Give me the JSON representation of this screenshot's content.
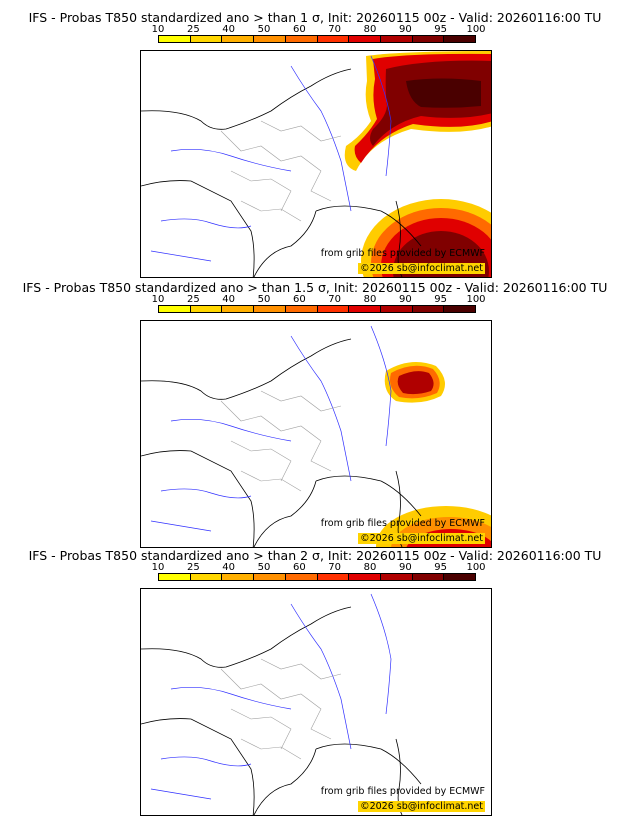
{
  "scale": {
    "labels": [
      "10",
      "25",
      "40",
      "50",
      "60",
      "70",
      "80",
      "90",
      "95",
      "100"
    ],
    "colors": [
      "#ffff00",
      "#ffd700",
      "#ffb000",
      "#ff9000",
      "#ff6a00",
      "#ff3000",
      "#e00000",
      "#b00000",
      "#800000",
      "#4a0000"
    ]
  },
  "credit": {
    "source": "from grib files provided by ECMWF",
    "copyright": "©2026 sb@infoclimat.net"
  },
  "panels": [
    {
      "title": "IFS - Probas T850  standardized ano > than 1 σ, Init: 20260115 00z - Valid: 20260116:00 TU"
    },
    {
      "title": "IFS - Probas T850  standardized ano > than 1.5 σ, Init: 20260115 00z - Valid: 20260116:00 TU"
    },
    {
      "title": "IFS - Probas T850  standardized ano > than 2 σ, Init: 20260115 00z - Valid: 20260116:00 TU"
    }
  ],
  "colors": {
    "coast": "#000000",
    "rivers": "#3030ff",
    "borders": "#a0a0a0"
  }
}
